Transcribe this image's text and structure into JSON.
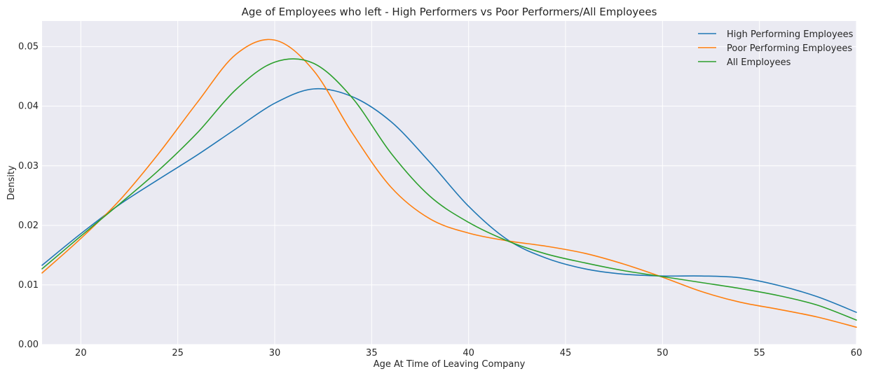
{
  "chart_data": {
    "type": "line",
    "title": "Age of Employees who left - High Performers vs Poor Performers/All Employees",
    "xlabel": "Age At Time of Leaving Company",
    "ylabel": "Density",
    "xlim": [
      18,
      60
    ],
    "ylim": [
      0,
      0.0543
    ],
    "x_ticks": [
      20,
      25,
      30,
      35,
      40,
      45,
      50,
      55,
      60
    ],
    "x_tick_labels": [
      "20",
      "25",
      "30",
      "35",
      "40",
      "45",
      "50",
      "55",
      "60"
    ],
    "y_ticks": [
      0,
      0.01,
      0.02,
      0.03,
      0.04,
      0.05
    ],
    "y_tick_labels": [
      "0.00",
      "0.01",
      "0.02",
      "0.03",
      "0.04",
      "0.05"
    ],
    "grid": true,
    "legend_position": "top-right",
    "colors": {
      "background": "#eaeaf2",
      "grid": "#ffffff",
      "text": "#262626"
    },
    "series": [
      {
        "name": "High Performing Employees",
        "color": "#1f77b4",
        "x": [
          18,
          20,
          22,
          24,
          26,
          28,
          30,
          32,
          34,
          36,
          38,
          40,
          42,
          44,
          46,
          48,
          50,
          52,
          54,
          56,
          58,
          60
        ],
        "y": [
          0.0133,
          0.0186,
          0.0235,
          0.0277,
          0.0318,
          0.0362,
          0.0405,
          0.0429,
          0.0416,
          0.0374,
          0.0306,
          0.0232,
          0.0176,
          0.0145,
          0.0127,
          0.0118,
          0.0115,
          0.0115,
          0.0112,
          0.0099,
          0.008,
          0.0054
        ]
      },
      {
        "name": "Poor Performing Employees",
        "color": "#ff7f0e",
        "x": [
          18,
          20,
          22,
          24,
          26,
          28,
          30,
          32,
          34,
          36,
          38,
          40,
          42,
          44,
          46,
          48,
          50,
          52,
          54,
          56,
          58,
          60
        ],
        "y": [
          0.012,
          0.0178,
          0.0242,
          0.032,
          0.0406,
          0.0487,
          0.0511,
          0.046,
          0.0355,
          0.0264,
          0.0211,
          0.0187,
          0.0174,
          0.0165,
          0.0153,
          0.0135,
          0.0113,
          0.0089,
          0.0071,
          0.0059,
          0.0046,
          0.0029
        ]
      },
      {
        "name": "All Employees",
        "color": "#2ca02c",
        "x": [
          18,
          20,
          22,
          24,
          26,
          28,
          30,
          32,
          34,
          36,
          38,
          40,
          42,
          44,
          46,
          48,
          50,
          52,
          54,
          56,
          58,
          60
        ],
        "y": [
          0.0127,
          0.0182,
          0.0236,
          0.0292,
          0.0355,
          0.0428,
          0.0474,
          0.0472,
          0.0414,
          0.0321,
          0.0249,
          0.0205,
          0.0174,
          0.0152,
          0.0137,
          0.0124,
          0.0114,
          0.0104,
          0.0094,
          0.0082,
          0.0066,
          0.0041
        ]
      }
    ]
  }
}
